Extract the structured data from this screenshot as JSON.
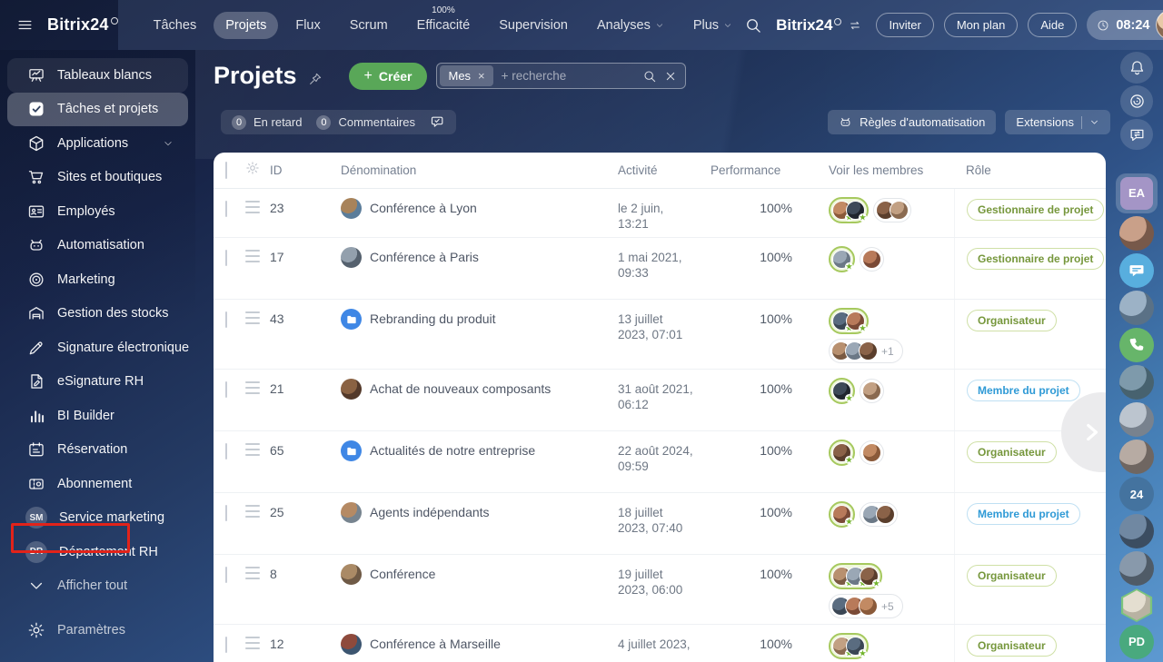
{
  "colors": {
    "create_button": "#59a758",
    "annotation_red": "#e2231a",
    "folder_icon": "#3f87e5",
    "role_green": "#76973c",
    "role_blue": "#2f9ad6",
    "member_ring_green": "#a6c95e"
  },
  "topbar": {
    "logo": "Bitrix24",
    "nav": [
      {
        "label": "Tâches"
      },
      {
        "label": "Projets",
        "active": true
      },
      {
        "label": "Flux"
      },
      {
        "label": "Scrum"
      },
      {
        "label": "Efficacité",
        "sup": "100%"
      },
      {
        "label": "Supervision"
      },
      {
        "label": "Analyses",
        "chevron": true
      },
      {
        "label": "Plus",
        "chevron": true
      }
    ],
    "search_logo": "Bitrix24",
    "invite_label": "Inviter",
    "plan_label": "Mon plan",
    "help_label": "Aide",
    "time": "08:24"
  },
  "sidebar": {
    "items": [
      {
        "label": "Tableaux blancs",
        "icon": "whiteboard",
        "hover": true
      },
      {
        "label": "Tâches et projets",
        "icon": "check-square",
        "active": true
      },
      {
        "label": "Applications",
        "icon": "cube",
        "chevron": true
      },
      {
        "label": "Sites et boutiques",
        "icon": "cart"
      },
      {
        "label": "Employés",
        "icon": "id-card"
      },
      {
        "label": "Automatisation",
        "icon": "robot"
      },
      {
        "label": "Marketing",
        "icon": "target"
      },
      {
        "label": "Gestion des stocks",
        "icon": "warehouse"
      },
      {
        "label": "Signature électronique",
        "icon": "pen"
      },
      {
        "label": "eSignature RH",
        "icon": "doc-pen"
      },
      {
        "label": "BI Builder",
        "icon": "bar-chart"
      },
      {
        "label": "Réservation",
        "icon": "calendar"
      },
      {
        "label": "Abonnement",
        "icon": "ticket"
      },
      {
        "label": "Service marketing",
        "badge": "SM"
      },
      {
        "label": "Département RH",
        "badge": "DR"
      },
      {
        "label": "Afficher tout",
        "icon": "chevron-down",
        "muted": true,
        "annotated": true
      }
    ],
    "settings_label": "Paramètres"
  },
  "header": {
    "title": "Projets",
    "create_label": "Créer",
    "filter_chip": "Mes",
    "search_placeholder": "+ recherche",
    "stats": [
      {
        "count": "0",
        "label": "En retard"
      },
      {
        "count": "0",
        "label": "Commentaires"
      }
    ],
    "automation_label": "Règles d'automatisation",
    "extensions_label": "Extensions"
  },
  "table": {
    "columns": {
      "id": "ID",
      "name": "Dénomination",
      "activity": "Activité",
      "performance": "Performance",
      "members": "Voir les membres",
      "role": "Rôle"
    },
    "rows": [
      {
        "id": "23",
        "name": "Conférence à Lyon",
        "icon": "photo",
        "icon_colors": [
          "#a8835a",
          "#5b7d9a"
        ],
        "activity": "le 2 juin, 13:21",
        "performance": "100%",
        "members": {
          "lead": 2,
          "others": 2,
          "extra": "",
          "two_lines": false
        },
        "role": "Gestionnaire de projet",
        "role_color": "green"
      },
      {
        "id": "17",
        "name": "Conférence à Paris",
        "icon": "photo",
        "icon_colors": [
          "#93a0ad",
          "#55616e"
        ],
        "activity": "1 mai 2021, 09:33",
        "performance": "100%",
        "members": {
          "lead": 1,
          "others": 1,
          "extra": "",
          "two_lines": false
        },
        "role": "Gestionnaire de projet",
        "role_color": "green"
      },
      {
        "id": "43",
        "name": "Rebranding du produit",
        "icon": "folder",
        "icon_colors": [],
        "activity": "13 juillet 2023, 07:01",
        "performance": "100%",
        "members": {
          "lead": 2,
          "others": 3,
          "extra": "+1",
          "two_lines": true
        },
        "role": "Organisateur",
        "role_color": "green"
      },
      {
        "id": "21",
        "name": "Achat de nouveaux composants",
        "icon": "photo",
        "icon_colors": [
          "#8a6243",
          "#53392a"
        ],
        "activity": "31 août 2021, 06:12",
        "performance": "100%",
        "members": {
          "lead": 1,
          "others": 1,
          "extra": "",
          "two_lines": false
        },
        "role": "Membre du projet",
        "role_color": "blue"
      },
      {
        "id": "65",
        "name": "Actualités de notre entreprise",
        "icon": "folder",
        "icon_colors": [],
        "activity": "22 août 2024, 09:59",
        "performance": "100%",
        "members": {
          "lead": 1,
          "others": 1,
          "extra": "",
          "two_lines": false
        },
        "role": "Organisateur",
        "role_color": "green"
      },
      {
        "id": "25",
        "name": "Agents indépendants",
        "icon": "photo",
        "icon_colors": [
          "#b58a64",
          "#77848f"
        ],
        "activity": "18 juillet 2023, 07:40",
        "performance": "100%",
        "members": {
          "lead": 1,
          "others": 2,
          "extra": "",
          "two_lines": false
        },
        "role": "Membre du projet",
        "role_color": "blue"
      },
      {
        "id": "8",
        "name": "Conférence",
        "icon": "photo",
        "icon_colors": [
          "#aa8a66",
          "#6f5a46"
        ],
        "activity": "19 juillet 2023, 06:00",
        "performance": "100%",
        "members": {
          "lead": 3,
          "others": 3,
          "extra": "+5",
          "two_lines": true
        },
        "role": "Organisateur",
        "role_color": "green"
      },
      {
        "id": "12",
        "name": "Conférence à Marseille",
        "icon": "photo",
        "icon_colors": [
          "#8e4a3c",
          "#3c5570"
        ],
        "activity": "4 juillet 2023,",
        "performance": "100%",
        "members": {
          "lead": 2,
          "others": 2,
          "extra": "",
          "two_lines": true
        },
        "role": "Organisateur",
        "role_color": "green"
      }
    ]
  },
  "rail": {
    "items": [
      {
        "type": "button",
        "icon": "bell",
        "name": "notifications"
      },
      {
        "type": "button",
        "icon": "copilot",
        "name": "copilot"
      },
      {
        "type": "button",
        "icon": "chat-sync",
        "name": "messenger-sync"
      },
      {
        "type": "tile",
        "label": "EA",
        "bg": "#a495c6",
        "name": "active-user-tile"
      },
      {
        "type": "avatar",
        "colors": [
          "#c9a089",
          "#77594a"
        ],
        "name": "contact-avatar"
      },
      {
        "type": "icon-avatar",
        "icon": "chat-bubble",
        "bg": "#58aede",
        "name": "chat"
      },
      {
        "type": "avatar",
        "colors": [
          "#9cb2c6",
          "#5a7186"
        ],
        "name": "contact-avatar"
      },
      {
        "type": "icon-avatar",
        "icon": "phone",
        "bg": "#67b56a",
        "name": "telephony"
      },
      {
        "type": "avatar",
        "colors": [
          "#7e9aab",
          "#47626f"
        ],
        "name": "contact-avatar"
      },
      {
        "type": "avatar",
        "colors": [
          "#bcc5cf",
          "#78828e"
        ],
        "name": "contact-avatar"
      },
      {
        "type": "avatar",
        "colors": [
          "#b7aba3",
          "#6f6661"
        ],
        "name": "contact-avatar"
      },
      {
        "type": "badge",
        "label": "24",
        "bg": "#44739f",
        "name": "bitrix24-badge"
      },
      {
        "type": "avatar",
        "colors": [
          "#7088a2",
          "#3b4d61"
        ],
        "name": "contact-avatar"
      },
      {
        "type": "avatar",
        "colors": [
          "#8899ab",
          "#4f5b67"
        ],
        "name": "contact-avatar"
      },
      {
        "type": "hex",
        "colors": [
          "#e4ded0",
          "#b8b2a2"
        ],
        "ring": "#7cc47c",
        "name": "hex-avatar"
      },
      {
        "type": "badge",
        "label": "PD",
        "bg": "#49a97e",
        "name": "user-badge"
      }
    ]
  },
  "avatar_palette": [
    "#c28a63|#8a5a3a",
    "#3e4a58|#20262e",
    "#b8906f|#7a5a42",
    "#9aa7b5|#6b7886",
    "#8a6248|#5a3e2c",
    "#c2a083|#8a6a50",
    "#5a6c80|#3a4654",
    "#b87a5a|#7a4a36"
  ]
}
